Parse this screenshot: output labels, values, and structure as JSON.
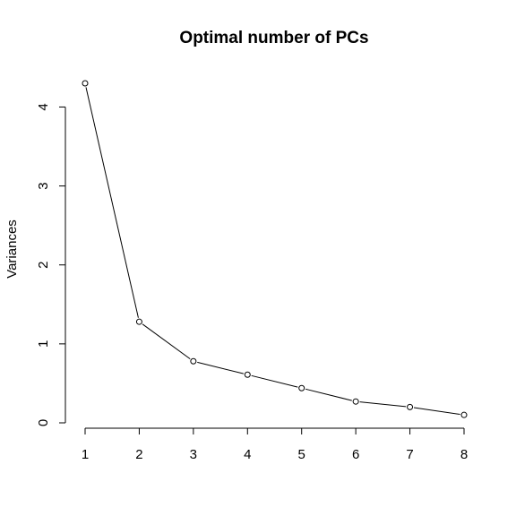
{
  "chart_data": {
    "type": "line",
    "title": "Optimal number of PCs",
    "xlabel": "",
    "ylabel": "Variances",
    "x": [
      1,
      2,
      3,
      4,
      5,
      6,
      7,
      8
    ],
    "series": [
      {
        "values": [
          4.3,
          1.28,
          0.78,
          0.61,
          0.44,
          0.27,
          0.2,
          0.1
        ]
      }
    ],
    "xticks": [
      1,
      2,
      3,
      4,
      5,
      6,
      7,
      8
    ],
    "yticks": [
      0,
      1,
      2,
      3,
      4
    ],
    "xlim": [
      1,
      8
    ],
    "ylim": [
      0,
      4.3
    ],
    "grid": false,
    "markers": "open-circle",
    "colors": {
      "line": "#000000",
      "marker_fill": "#ffffff",
      "marker_stroke": "#000000",
      "background": "#ffffff"
    }
  }
}
